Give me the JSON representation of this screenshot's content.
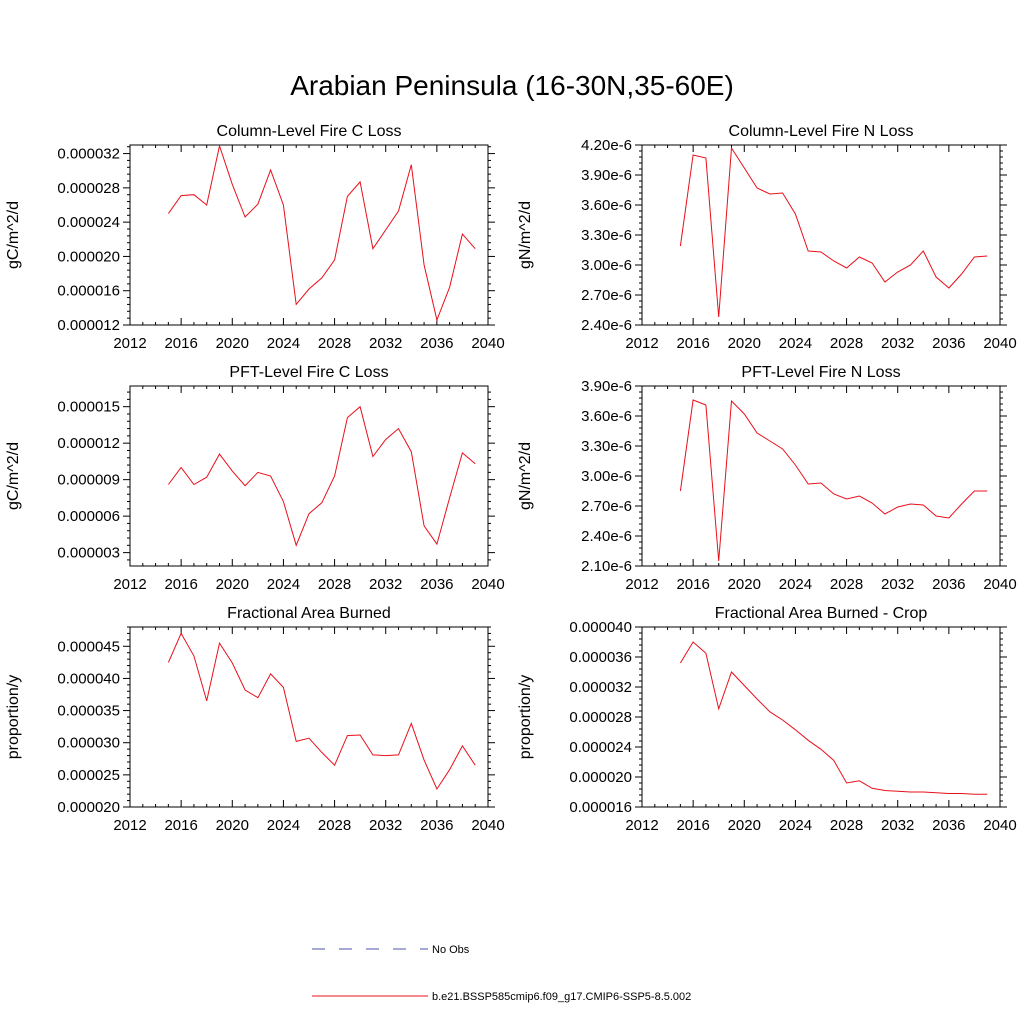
{
  "figure": {
    "title": "Arabian Peninsula (16-30N,35-60E)"
  },
  "legend": [
    {
      "label": "No Obs",
      "color": "#4a55a8",
      "dashed": true
    },
    {
      "label": "b.e21.BSSP585cmip6.f09_g17.CMIP6-SSP5-8.5.002",
      "color": "#e8101b",
      "dashed": false
    }
  ],
  "chart_data": [
    {
      "type": "line",
      "title": "Column-Level Fire C Loss",
      "ylabel": "gC/m^2/d",
      "xlim": [
        2012,
        2040
      ],
      "ylim": [
        1.2e-05,
        3.3e-05
      ],
      "x_ticks": [
        2012,
        2016,
        2020,
        2024,
        2028,
        2032,
        2036,
        2040
      ],
      "y_ticks": [
        1.2e-05,
        1.6e-05,
        2e-05,
        2.4e-05,
        2.8e-05,
        3.2e-05
      ],
      "y_tick_labels": [
        "0.000012",
        "0.000016",
        "0.000020",
        "0.000024",
        "0.000028",
        "0.000032"
      ],
      "x": [
        2015,
        2016,
        2017,
        2018,
        2019,
        2020,
        2021,
        2022,
        2023,
        2024,
        2025,
        2026,
        2027,
        2028,
        2029,
        2030,
        2031,
        2032,
        2033,
        2034,
        2035,
        2036,
        2037,
        2038,
        2039
      ],
      "values": [
        2.5e-05,
        2.71e-05,
        2.72e-05,
        2.6e-05,
        3.29e-05,
        2.84e-05,
        2.46e-05,
        2.61e-05,
        3.01e-05,
        2.6e-05,
        1.44e-05,
        1.62e-05,
        1.75e-05,
        1.96e-05,
        2.7e-05,
        2.87e-05,
        2.09e-05,
        2.31e-05,
        2.53e-05,
        3.07e-05,
        1.9e-05,
        1.26e-05,
        1.64e-05,
        2.26e-05,
        2.09e-05
      ]
    },
    {
      "type": "line",
      "title": "Column-Level Fire N Loss",
      "ylabel": "gN/m^2/d",
      "xlim": [
        2012,
        2040
      ],
      "ylim": [
        2.4e-06,
        4.2e-06
      ],
      "x_ticks": [
        2012,
        2016,
        2020,
        2024,
        2028,
        2032,
        2036,
        2040
      ],
      "y_ticks": [
        2.4e-06,
        2.7e-06,
        3e-06,
        3.3e-06,
        3.6e-06,
        3.9e-06,
        4.2e-06
      ],
      "y_tick_labels": [
        "2.40e-6",
        "2.70e-6",
        "3.00e-6",
        "3.30e-6",
        "3.60e-6",
        "3.90e-6",
        "4.20e-6"
      ],
      "x": [
        2015,
        2016,
        2017,
        2018,
        2019,
        2020,
        2021,
        2022,
        2023,
        2024,
        2025,
        2026,
        2027,
        2028,
        2029,
        2030,
        2031,
        2032,
        2033,
        2034,
        2035,
        2036,
        2037,
        2038,
        2039
      ],
      "values": [
        3.19e-06,
        4.1e-06,
        4.07e-06,
        2.48e-06,
        4.17e-06,
        3.97e-06,
        3.77e-06,
        3.71e-06,
        3.72e-06,
        3.51e-06,
        3.14e-06,
        3.13e-06,
        3.04e-06,
        2.97e-06,
        3.08e-06,
        3.02e-06,
        2.83e-06,
        2.93e-06,
        3e-06,
        3.14e-06,
        2.88e-06,
        2.77e-06,
        2.91e-06,
        3.08e-06,
        3.09e-06
      ]
    },
    {
      "type": "line",
      "title": "PFT-Level Fire C Loss",
      "ylabel": "gC/m^2/d",
      "xlim": [
        2012,
        2040
      ],
      "ylim": [
        1.9e-06,
        1.67e-05
      ],
      "x_ticks": [
        2012,
        2016,
        2020,
        2024,
        2028,
        2032,
        2036,
        2040
      ],
      "y_ticks": [
        3e-06,
        6e-06,
        9e-06,
        1.2e-05,
        1.5e-05
      ],
      "y_tick_labels": [
        "0.000003",
        "0.000006",
        "0.000009",
        "0.000012",
        "0.000015"
      ],
      "x": [
        2015,
        2016,
        2017,
        2018,
        2019,
        2020,
        2021,
        2022,
        2023,
        2024,
        2025,
        2026,
        2027,
        2028,
        2029,
        2030,
        2031,
        2032,
        2033,
        2034,
        2035,
        2036,
        2037,
        2038,
        2039
      ],
      "values": [
        8.6e-06,
        1e-05,
        8.6e-06,
        9.2e-06,
        1.11e-05,
        9.7e-06,
        8.5e-06,
        9.6e-06,
        9.3e-06,
        7.2e-06,
        3.6e-06,
        6.2e-06,
        7.1e-06,
        9.3e-06,
        1.41e-05,
        1.5e-05,
        1.09e-05,
        1.23e-05,
        1.32e-05,
        1.13e-05,
        5.2e-06,
        3.7e-06,
        7.5e-06,
        1.12e-05,
        1.03e-05
      ]
    },
    {
      "type": "line",
      "title": "PFT-Level Fire N Loss",
      "ylabel": "gN/m^2/d",
      "xlim": [
        2012,
        2040
      ],
      "ylim": [
        2.1e-06,
        3.9e-06
      ],
      "x_ticks": [
        2012,
        2016,
        2020,
        2024,
        2028,
        2032,
        2036,
        2040
      ],
      "y_ticks": [
        2.1e-06,
        2.4e-06,
        2.7e-06,
        3e-06,
        3.3e-06,
        3.6e-06,
        3.9e-06
      ],
      "y_tick_labels": [
        "2.10e-6",
        "2.40e-6",
        "2.70e-6",
        "3.00e-6",
        "3.30e-6",
        "3.60e-6",
        "3.90e-6"
      ],
      "x": [
        2015,
        2016,
        2017,
        2018,
        2019,
        2020,
        2021,
        2022,
        2023,
        2024,
        2025,
        2026,
        2027,
        2028,
        2029,
        2030,
        2031,
        2032,
        2033,
        2034,
        2035,
        2036,
        2037,
        2038,
        2039
      ],
      "values": [
        2.85e-06,
        3.76e-06,
        3.71e-06,
        2.15e-06,
        3.75e-06,
        3.62e-06,
        3.43e-06,
        3.35e-06,
        3.27e-06,
        3.11e-06,
        2.92e-06,
        2.93e-06,
        2.82e-06,
        2.77e-06,
        2.8e-06,
        2.73e-06,
        2.62e-06,
        2.69e-06,
        2.72e-06,
        2.71e-06,
        2.6e-06,
        2.58e-06,
        2.72e-06,
        2.85e-06,
        2.85e-06
      ]
    },
    {
      "type": "line",
      "title": "Fractional Area Burned",
      "ylabel": "proportion/y",
      "xlim": [
        2012,
        2040
      ],
      "ylim": [
        2e-05,
        4.8e-05
      ],
      "x_ticks": [
        2012,
        2016,
        2020,
        2024,
        2028,
        2032,
        2036,
        2040
      ],
      "y_ticks": [
        2e-05,
        2.5e-05,
        3e-05,
        3.5e-05,
        4e-05,
        4.5e-05
      ],
      "y_tick_labels": [
        "0.000020",
        "0.000025",
        "0.000030",
        "0.000035",
        "0.000040",
        "0.000045"
      ],
      "x": [
        2015,
        2016,
        2017,
        2018,
        2019,
        2020,
        2021,
        2022,
        2023,
        2024,
        2025,
        2026,
        2027,
        2028,
        2029,
        2030,
        2031,
        2032,
        2033,
        2034,
        2035,
        2036,
        2037,
        2038,
        2039
      ],
      "values": [
        4.25e-05,
        4.7e-05,
        4.35e-05,
        3.65e-05,
        4.55e-05,
        4.24e-05,
        3.82e-05,
        3.7e-05,
        4.07e-05,
        3.86e-05,
        3.02e-05,
        3.07e-05,
        2.85e-05,
        2.65e-05,
        3.11e-05,
        3.12e-05,
        2.81e-05,
        2.8e-05,
        2.81e-05,
        3.3e-05,
        2.73e-05,
        2.28e-05,
        2.58e-05,
        2.95e-05,
        2.65e-05
      ]
    },
    {
      "type": "line",
      "title": "Fractional Area Burned - Crop",
      "ylabel": "proportion/y",
      "xlim": [
        2012,
        2040
      ],
      "ylim": [
        1.6e-05,
        4e-05
      ],
      "x_ticks": [
        2012,
        2016,
        2020,
        2024,
        2028,
        2032,
        2036,
        2040
      ],
      "y_ticks": [
        1.6e-05,
        2e-05,
        2.4e-05,
        2.8e-05,
        3.2e-05,
        3.6e-05,
        4e-05
      ],
      "y_tick_labels": [
        "0.000016",
        "0.000020",
        "0.000024",
        "0.000028",
        "0.000032",
        "0.000036",
        "0.000040"
      ],
      "x": [
        2015,
        2016,
        2017,
        2018,
        2019,
        2020,
        2021,
        2022,
        2023,
        2024,
        2025,
        2026,
        2027,
        2028,
        2029,
        2030,
        2031,
        2032,
        2033,
        2034,
        2035,
        2036,
        2037,
        2038,
        2039
      ],
      "values": [
        3.52e-05,
        3.8e-05,
        3.65e-05,
        2.91e-05,
        3.4e-05,
        3.22e-05,
        3.04e-05,
        2.87e-05,
        2.76e-05,
        2.63e-05,
        2.49e-05,
        2.37e-05,
        2.22e-05,
        1.92e-05,
        1.95e-05,
        1.85e-05,
        1.82e-05,
        1.81e-05,
        1.8e-05,
        1.8e-05,
        1.79e-05,
        1.78e-05,
        1.78e-05,
        1.77e-05,
        1.77e-05
      ]
    }
  ]
}
